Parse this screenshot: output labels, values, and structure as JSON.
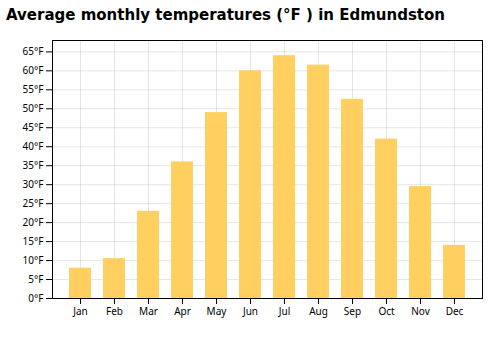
{
  "chart_data": {
    "type": "bar",
    "title": "Average monthly temperatures (°F ) in Edmundston",
    "categories": [
      "Jan",
      "Feb",
      "Mar",
      "Apr",
      "May",
      "Jun",
      "Jul",
      "Aug",
      "Sep",
      "Oct",
      "Nov",
      "Dec"
    ],
    "values": [
      8,
      10.5,
      23,
      36,
      49,
      60,
      64,
      61.5,
      52.5,
      42,
      29.5,
      14
    ],
    "color": "#FFD060",
    "ylim": [
      0,
      68
    ],
    "yticks": [
      {
        "value": 0,
        "label": "0°F"
      },
      {
        "value": 5,
        "label": "5°F"
      },
      {
        "value": 10,
        "label": "10°F"
      },
      {
        "value": 15,
        "label": "15°F"
      },
      {
        "value": 20,
        "label": "20°F"
      },
      {
        "value": 25,
        "label": "25°F"
      },
      {
        "value": 30,
        "label": "30°F"
      },
      {
        "value": 35,
        "label": "35°F"
      },
      {
        "value": 40,
        "label": "40°F"
      },
      {
        "value": 45,
        "label": "45°F"
      },
      {
        "value": 50,
        "label": "50°F"
      },
      {
        "value": 55,
        "label": "55°F"
      },
      {
        "value": 60,
        "label": "60°F"
      },
      {
        "value": 65,
        "label": "65°F"
      }
    ],
    "grid": true
  }
}
